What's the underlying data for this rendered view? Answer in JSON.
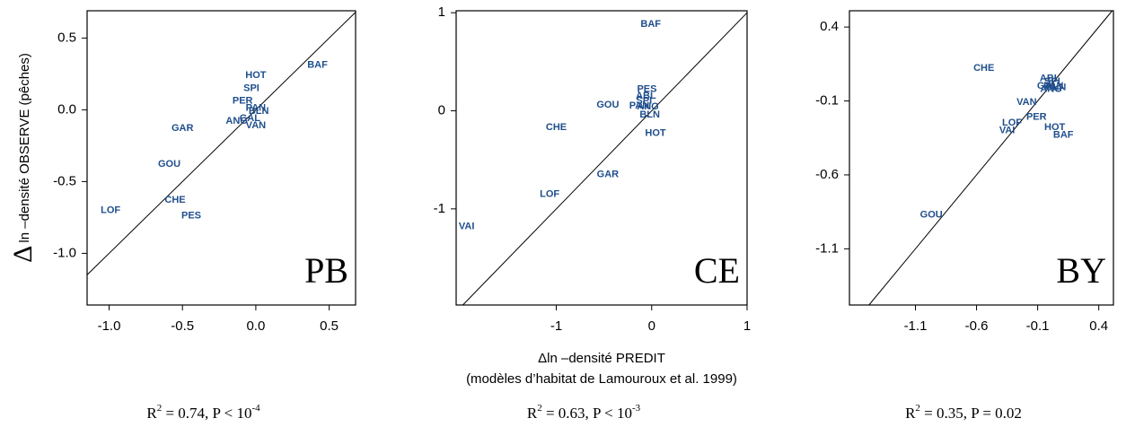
{
  "figure": {
    "y_label_symbol": "Δ",
    "y_label": "ln –densité OBSERVE (pêches)",
    "x_label": "Δln –densité  PREDIT",
    "x_label_2": "(modèles d’habitat de Lamouroux et al. 1999)"
  },
  "chart_data": [
    {
      "type": "scatter",
      "panel": "PB",
      "color": "#1f4e8c",
      "labels": [
        "BAF",
        "HOT",
        "SPI",
        "PER",
        "PAN",
        "BLN",
        "ANG",
        "GAL",
        "VAN",
        "GAR",
        "GOU",
        "CHE",
        "PES",
        "LOF"
      ],
      "x": [
        0.42,
        0.0,
        -0.03,
        -0.09,
        0.0,
        0.02,
        -0.13,
        -0.04,
        0.0,
        -0.5,
        -0.59,
        -0.55,
        -0.44,
        -0.99
      ],
      "y": [
        0.31,
        0.24,
        0.15,
        0.06,
        0.01,
        -0.01,
        -0.08,
        -0.06,
        -0.11,
        -0.13,
        -0.38,
        -0.63,
        -0.74,
        -0.7
      ],
      "xlim": [
        -1.15,
        0.68
      ],
      "ylim": [
        -1.36,
        0.69
      ],
      "xticks": [
        {
          "value": -1.0,
          "label": "-1.0"
        },
        -0.5,
        {
          "value": 0.0,
          "label": "0.0"
        },
        0.5
      ],
      "yticks": [
        0.5,
        {
          "value": 0.0,
          "label": "0.0"
        },
        -0.5,
        {
          "value": -1.0,
          "label": "-1.0"
        }
      ],
      "annotation": [
        "R",
        "2",
        " = 0.74,  P <  10",
        "-4"
      ]
    },
    {
      "type": "scatter",
      "panel": "CE",
      "color": "#1f4e8c",
      "labels": [
        "BAF",
        "PES",
        "ABL",
        "SPI",
        "GOU",
        "PAN",
        "ANG",
        "BLN",
        "HOT",
        "CHE",
        "GAR",
        "LOF",
        "VAI"
      ],
      "x": [
        -0.01,
        -0.05,
        -0.06,
        -0.08,
        -0.46,
        -0.13,
        -0.04,
        -0.02,
        0.04,
        -1.0,
        -0.46,
        -1.07,
        -1.94
      ],
      "y": [
        0.88,
        0.22,
        0.15,
        0.1,
        0.06,
        0.05,
        0.04,
        -0.04,
        -0.23,
        -0.17,
        -0.65,
        -0.85,
        -1.18
      ],
      "xlim": [
        -2.05,
        1
      ],
      "ylim": [
        -1.98,
        1.02
      ],
      "xticks": [
        -1,
        0,
        1
      ],
      "yticks": [
        1,
        0,
        -1
      ],
      "annotation": [
        "R",
        "2",
        " = 0.63,  P <  10",
        "-3"
      ]
    },
    {
      "type": "scatter",
      "panel": "BY",
      "color": "#1f4e8c",
      "labels": [
        "CHE",
        "ABL",
        "SPI",
        "GAL",
        "PAN",
        "ANG",
        "BLN",
        "VAN",
        "PER",
        "LOF",
        "VAI",
        "HOT",
        "BAF",
        "GOU"
      ],
      "x": [
        -0.54,
        0.0,
        0.02,
        -0.02,
        0.03,
        0.01,
        0.05,
        -0.19,
        -0.11,
        -0.31,
        -0.35,
        0.04,
        0.11,
        -0.97
      ],
      "y": [
        0.12,
        0.05,
        0.03,
        0.0,
        0.0,
        -0.02,
        -0.01,
        -0.11,
        -0.21,
        -0.25,
        -0.3,
        -0.28,
        -0.33,
        -0.87
      ],
      "xlim": [
        -1.64,
        0.52
      ],
      "ylim": [
        -1.48,
        0.51
      ],
      "xticks": [
        -1.1,
        -0.6,
        -0.1,
        0.4
      ],
      "yticks": [
        0.4,
        -0.1,
        -0.6,
        -1.1
      ],
      "annotation": [
        "R",
        "2",
        " = 0.35,  P =  0.02"
      ]
    }
  ]
}
